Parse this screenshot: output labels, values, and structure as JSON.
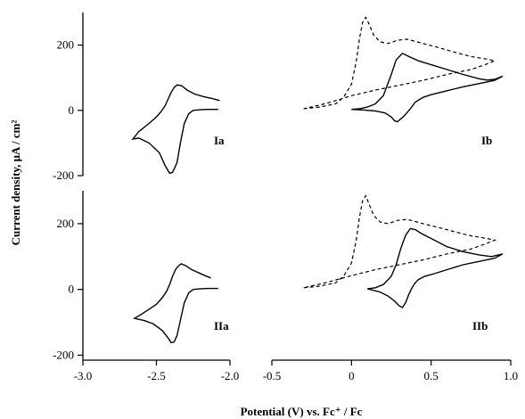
{
  "chart_data": {
    "type": "line",
    "xlabel": "Potential (V)  vs. Fc⁺ / Fc",
    "ylabel": "Current density, μA / cm²",
    "x_axes": [
      {
        "xlim": [
          -3.0,
          -2.0
        ],
        "ticks": [
          -3.0,
          -2.5,
          -2.0
        ],
        "tick_labels": [
          "-3.0",
          "-2.5",
          "-2.0"
        ]
      },
      {
        "xlim": [
          -0.5,
          1.0
        ],
        "ticks": [
          -0.5,
          0.0,
          0.5,
          1.0
        ],
        "tick_labels": [
          "-0.5",
          "0",
          "0.5",
          "1.0"
        ]
      }
    ],
    "y_axes": [
      {
        "ylim": [
          -200,
          300
        ],
        "ticks": [
          -200,
          0,
          200
        ],
        "tick_labels": [
          "-200",
          "0",
          "200"
        ]
      },
      {
        "ylim": [
          -215,
          300
        ],
        "ticks": [
          -200,
          0,
          200
        ],
        "tick_labels": [
          "-200",
          "0",
          "200"
        ]
      }
    ],
    "grid": false,
    "legend": "none",
    "panels": [
      {
        "label": "Ia",
        "row": 0,
        "col": 0,
        "series": [
          {
            "style": "solid",
            "x": [
              -2.08,
              -2.15,
              -2.2,
              -2.25,
              -2.28,
              -2.31,
              -2.335,
              -2.36,
              -2.39,
              -2.41,
              -2.44,
              -2.48,
              -2.55,
              -2.62,
              -2.66,
              -2.62,
              -2.55,
              -2.5,
              -2.47,
              -2.44,
              -2.42,
              -2.4,
              -2.38,
              -2.36,
              -2.33,
              -2.29,
              -2.24,
              -2.18,
              -2.12,
              -2.07
            ],
            "y": [
              3,
              3,
              2,
              0,
              -10,
              -40,
              -95,
              -160,
              -190,
              -193,
              -170,
              -130,
              -100,
              -85,
              -88,
              -65,
              -40,
              -20,
              -5,
              15,
              35,
              55,
              70,
              78,
              76,
              62,
              50,
              42,
              36,
              30
            ]
          }
        ]
      },
      {
        "label": "Ib",
        "row": 0,
        "col": 1,
        "series": [
          {
            "style": "dashed",
            "x": [
              -0.3,
              -0.2,
              -0.1,
              -0.05,
              0.0,
              0.03,
              0.05,
              0.07,
              0.09,
              0.11,
              0.14,
              0.18,
              0.23,
              0.29,
              0.35,
              0.45,
              0.55,
              0.65,
              0.75,
              0.85,
              0.9,
              0.85,
              0.75,
              0.6,
              0.45,
              0.3,
              0.15,
              0.0,
              -0.15,
              -0.3
            ],
            "y": [
              5,
              10,
              20,
              40,
              80,
              150,
              220,
              270,
              285,
              265,
              230,
              210,
              205,
              215,
              218,
              205,
              192,
              178,
              165,
              157,
              152,
              142,
              125,
              110,
              92,
              77,
              62,
              45,
              22,
              5
            ]
          },
          {
            "style": "solid",
            "x": [
              0.0,
              0.05,
              0.1,
              0.15,
              0.2,
              0.25,
              0.28,
              0.32,
              0.36,
              0.42,
              0.5,
              0.6,
              0.7,
              0.8,
              0.85,
              0.9,
              0.95,
              0.9,
              0.8,
              0.7,
              0.6,
              0.5,
              0.45,
              0.4,
              0.37,
              0.34,
              0.32,
              0.3,
              0.29,
              0.27,
              0.25,
              0.21,
              0.15,
              0.08,
              0.0
            ],
            "y": [
              3,
              5,
              10,
              20,
              45,
              110,
              155,
              175,
              165,
              152,
              140,
              125,
              110,
              97,
              93,
              95,
              105,
              92,
              82,
              72,
              60,
              48,
              40,
              25,
              5,
              -12,
              -22,
              -30,
              -35,
              -32,
              -20,
              -8,
              -2,
              1,
              3
            ]
          }
        ]
      },
      {
        "label": "IIa",
        "row": 1,
        "col": 0,
        "series": [
          {
            "style": "solid",
            "x": [
              -2.08,
              -2.15,
              -2.2,
              -2.25,
              -2.28,
              -2.31,
              -2.335,
              -2.36,
              -2.38,
              -2.4,
              -2.42,
              -2.46,
              -2.52,
              -2.58,
              -2.65,
              -2.6,
              -2.55,
              -2.5,
              -2.46,
              -2.43,
              -2.41,
              -2.39,
              -2.37,
              -2.35,
              -2.33,
              -2.3,
              -2.26,
              -2.21,
              -2.17,
              -2.13
            ],
            "y": [
              3,
              3,
              2,
              0,
              -10,
              -40,
              -90,
              -140,
              -160,
              -162,
              -148,
              -125,
              -105,
              -95,
              -88,
              -75,
              -60,
              -45,
              -25,
              -5,
              15,
              40,
              60,
              72,
              78,
              72,
              60,
              50,
              42,
              35
            ]
          }
        ]
      },
      {
        "label": "IIb",
        "row": 1,
        "col": 1,
        "series": [
          {
            "style": "dashed",
            "x": [
              -0.3,
              -0.2,
              -0.1,
              -0.05,
              0.0,
              0.03,
              0.05,
              0.07,
              0.09,
              0.11,
              0.14,
              0.18,
              0.23,
              0.29,
              0.35,
              0.45,
              0.55,
              0.65,
              0.75,
              0.85,
              0.9,
              0.85,
              0.75,
              0.6,
              0.45,
              0.3,
              0.15,
              0.0,
              -0.15,
              -0.3
            ],
            "y": [
              5,
              10,
              20,
              40,
              80,
              150,
              220,
              270,
              285,
              260,
              225,
              205,
              200,
              210,
              213,
              200,
              188,
              175,
              163,
              155,
              150,
              140,
              123,
              108,
              90,
              75,
              60,
              42,
              22,
              5
            ]
          },
          {
            "style": "solid",
            "x": [
              0.1,
              0.15,
              0.2,
              0.25,
              0.28,
              0.31,
              0.34,
              0.37,
              0.4,
              0.44,
              0.5,
              0.6,
              0.7,
              0.8,
              0.88,
              0.95,
              0.9,
              0.8,
              0.7,
              0.6,
              0.52,
              0.46,
              0.42,
              0.4,
              0.38,
              0.36,
              0.34,
              0.32,
              0.3,
              0.27,
              0.23,
              0.18,
              0.1
            ],
            "y": [
              2,
              5,
              15,
              40,
              75,
              125,
              165,
              185,
              182,
              170,
              155,
              130,
              115,
              105,
              100,
              108,
              95,
              85,
              75,
              60,
              48,
              40,
              30,
              20,
              5,
              -15,
              -40,
              -55,
              -50,
              -35,
              -20,
              -8,
              2
            ]
          }
        ]
      }
    ]
  }
}
